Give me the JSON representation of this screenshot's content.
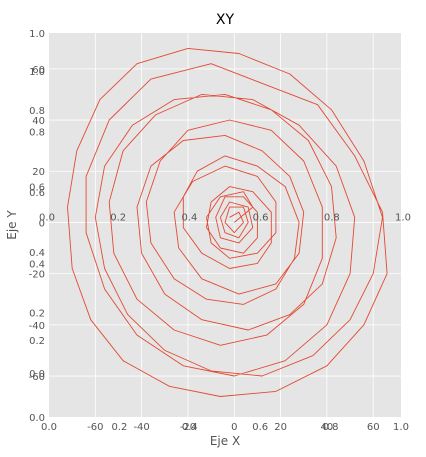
{
  "chart_data": {
    "type": "line",
    "title": "XY",
    "xlabel": "Eje X",
    "ylabel": "Eje Y",
    "xlim": [
      -80,
      72
    ],
    "ylim": [
      -76,
      74
    ],
    "grid": true,
    "style": "ggplot",
    "colors": {
      "line": "#e24a33",
      "panel": "#e5e5e5",
      "grid": "#ffffff",
      "frame": "#ffffff"
    },
    "x_ticks": [
      "-60",
      "-40",
      "-20",
      "0",
      "20",
      "40",
      "60"
    ],
    "y_ticks": [
      "-60",
      "-40",
      "-20",
      "0",
      "20",
      "40",
      "60"
    ],
    "x_ticks_unit": [
      "0.0",
      "0.2",
      "0.4",
      "0.6",
      "0.8",
      "1.0"
    ],
    "y_ticks_unit": [
      "0.0",
      "0.2",
      "0.4",
      "0.6",
      "0.8",
      "1.0"
    ],
    "x_ticks_axes1": [
      "0.0",
      "0.2",
      "0.4",
      "0.6",
      "0.8",
      "1.0"
    ],
    "y_ticks_axes1": [
      "0.0",
      "0.2",
      "0.4",
      "0.6",
      "0.8",
      "1.0"
    ],
    "series": [
      {
        "points": [
          [
            0,
            0
          ],
          [
            8,
            6
          ],
          [
            4,
            12
          ],
          [
            -6,
            10
          ],
          [
            -12,
            2
          ],
          [
            -10,
            -8
          ],
          [
            -2,
            -14
          ],
          [
            10,
            -12
          ],
          [
            18,
            -4
          ],
          [
            18,
            8
          ],
          [
            10,
            18
          ],
          [
            -4,
            22
          ],
          [
            -18,
            16
          ],
          [
            -26,
            4
          ],
          [
            -24,
            -10
          ],
          [
            -14,
            -22
          ],
          [
            2,
            -28
          ],
          [
            18,
            -24
          ],
          [
            28,
            -12
          ],
          [
            30,
            4
          ],
          [
            24,
            18
          ],
          [
            12,
            28
          ],
          [
            -4,
            34
          ],
          [
            -22,
            32
          ],
          [
            -36,
            22
          ],
          [
            -42,
            6
          ],
          [
            -40,
            -12
          ],
          [
            -30,
            -28
          ],
          [
            -14,
            -38
          ],
          [
            6,
            -42
          ],
          [
            24,
            -36
          ],
          [
            38,
            -24
          ],
          [
            44,
            -6
          ],
          [
            42,
            14
          ],
          [
            32,
            32
          ],
          [
            16,
            44
          ],
          [
            -4,
            50
          ],
          [
            -26,
            48
          ],
          [
            -44,
            38
          ],
          [
            -56,
            22
          ],
          [
            -60,
            2
          ],
          [
            -56,
            -18
          ],
          [
            -46,
            -36
          ],
          [
            -30,
            -50
          ],
          [
            -10,
            -58
          ],
          [
            12,
            -60
          ],
          [
            34,
            -52
          ],
          [
            50,
            -38
          ],
          [
            60,
            -20
          ],
          [
            64,
            2
          ],
          [
            56,
            24
          ],
          [
            42,
            44
          ],
          [
            24,
            58
          ],
          [
            2,
            66
          ],
          [
            -20,
            68
          ],
          [
            -42,
            62
          ],
          [
            -58,
            48
          ],
          [
            -68,
            28
          ],
          [
            -72,
            6
          ],
          [
            -70,
            -18
          ],
          [
            -62,
            -38
          ],
          [
            -48,
            -54
          ],
          [
            -28,
            -64
          ],
          [
            -6,
            -68
          ],
          [
            18,
            -66
          ],
          [
            40,
            -56
          ],
          [
            56,
            -40
          ],
          [
            66,
            -20
          ],
          [
            64,
            4
          ],
          [
            52,
            26
          ],
          [
            36,
            46
          ],
          [
            -10,
            62
          ],
          [
            -36,
            56
          ],
          [
            -54,
            40
          ],
          [
            -64,
            18
          ],
          [
            -64,
            -4
          ],
          [
            -56,
            -26
          ],
          [
            -42,
            -44
          ],
          [
            -22,
            -56
          ],
          [
            0,
            -60
          ],
          [
            22,
            -54
          ],
          [
            40,
            -40
          ],
          [
            50,
            -20
          ],
          [
            52,
            2
          ],
          [
            44,
            22
          ],
          [
            28,
            38
          ],
          [
            8,
            48
          ],
          [
            -14,
            50
          ],
          [
            -34,
            42
          ],
          [
            -48,
            28
          ],
          [
            -54,
            8
          ],
          [
            -52,
            -12
          ],
          [
            -42,
            -30
          ],
          [
            -26,
            -42
          ],
          [
            -6,
            -48
          ],
          [
            14,
            -44
          ],
          [
            30,
            -32
          ],
          [
            38,
            -14
          ],
          [
            38,
            6
          ],
          [
            30,
            24
          ],
          [
            16,
            36
          ],
          [
            -2,
            40
          ],
          [
            -20,
            36
          ],
          [
            -32,
            24
          ],
          [
            -38,
            8
          ],
          [
            -36,
            -8
          ],
          [
            -26,
            -22
          ],
          [
            -12,
            -30
          ],
          [
            4,
            -32
          ],
          [
            18,
            -26
          ],
          [
            26,
            -14
          ],
          [
            28,
            0
          ],
          [
            22,
            14
          ],
          [
            10,
            22
          ],
          [
            -4,
            26
          ],
          [
            -16,
            20
          ],
          [
            -22,
            10
          ],
          [
            -22,
            -2
          ],
          [
            -14,
            -12
          ],
          [
            -2,
            -18
          ],
          [
            10,
            -16
          ],
          [
            16,
            -8
          ],
          [
            16,
            4
          ],
          [
            8,
            12
          ],
          [
            -2,
            14
          ],
          [
            -10,
            8
          ],
          [
            -12,
            -2
          ],
          [
            -6,
            -10
          ],
          [
            4,
            -12
          ],
          [
            10,
            -6
          ],
          [
            10,
            4
          ],
          [
            4,
            10
          ],
          [
            -4,
            10
          ],
          [
            -8,
            2
          ],
          [
            -6,
            -6
          ],
          [
            2,
            -8
          ],
          [
            8,
            -2
          ],
          [
            6,
            6
          ],
          [
            -2,
            8
          ],
          [
            -6,
            2
          ],
          [
            -4,
            -4
          ],
          [
            2,
            -6
          ],
          [
            6,
            0
          ],
          [
            4,
            6
          ],
          [
            -2,
            6
          ],
          [
            -4,
            0
          ],
          [
            0,
            -4
          ],
          [
            4,
            0
          ],
          [
            2,
            4
          ],
          [
            -2,
            2
          ]
        ]
      }
    ]
  }
}
